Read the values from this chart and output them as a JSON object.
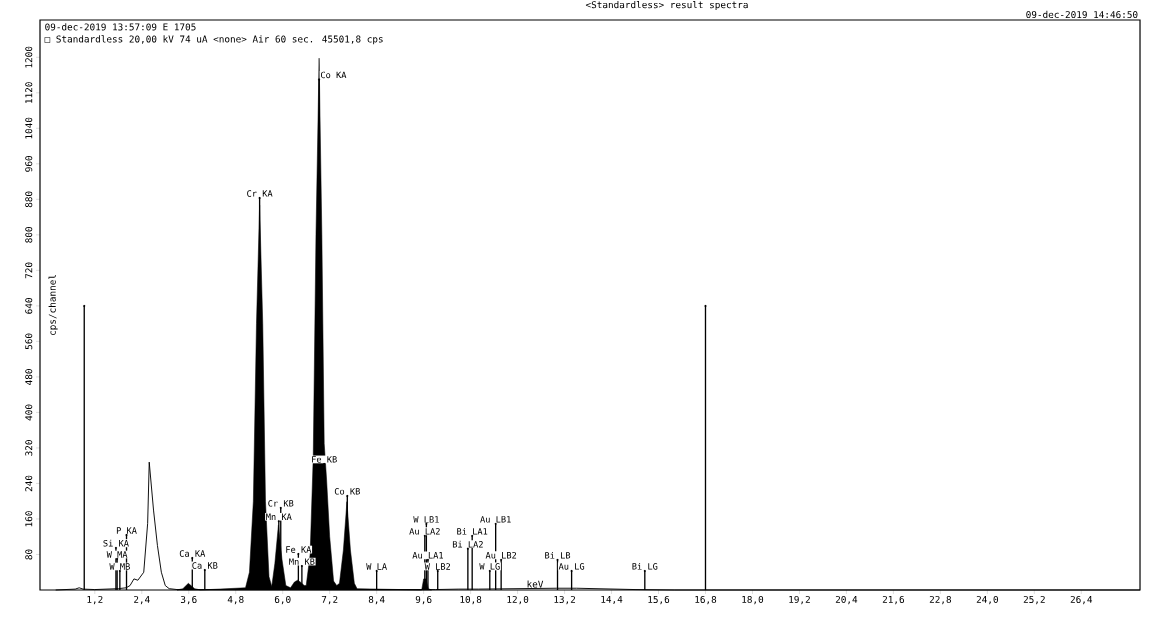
{
  "chart_data": {
    "type": "line",
    "title": "<Standardless> result spectra",
    "xlabel": "keV",
    "ylabel": "cps/channel",
    "annotations": [
      "09-dec-2019 13:57:09 E 1705",
      "□ Standardless 20,00 kV   74 uA <none>        Air  60 sec.   45501,8 cps",
      "09-dec-2019 14:46:50",
      {
        "text": "Co KA",
        "x": 6.93,
        "y": 1150
      },
      {
        "text": "Cr KA",
        "x": 5.41,
        "y": 883
      },
      {
        "text": "Fe KB",
        "x": 7.06,
        "y": 284
      },
      {
        "text": "Co KB",
        "x": 7.65,
        "y": 212
      },
      {
        "text": "Cr KB",
        "x": 5.95,
        "y": 185
      },
      {
        "text": "Mn KA",
        "x": 5.9,
        "y": 155
      },
      {
        "text": "Fe KA",
        "x": 6.4,
        "y": 81
      },
      {
        "text": "Mn KB",
        "x": 6.49,
        "y": 54
      },
      {
        "text": "P KA",
        "x": 2.01,
        "y": 124
      },
      {
        "text": "Si KA",
        "x": 1.74,
        "y": 95
      },
      {
        "text": "W MA",
        "x": 1.77,
        "y": 70
      },
      {
        "text": "W MB",
        "x": 1.84,
        "y": 43
      },
      {
        "text": "Ca KA",
        "x": 3.69,
        "y": 72
      },
      {
        "text": "Ca KB",
        "x": 4.01,
        "y": 45
      },
      {
        "text": "W LA",
        "x": 8.4,
        "y": 43
      },
      {
        "text": "W LB1",
        "x": 9.67,
        "y": 149
      },
      {
        "text": "Au LA2",
        "x": 9.63,
        "y": 122
      },
      {
        "text": "Au LA1",
        "x": 9.71,
        "y": 68
      },
      {
        "text": "W LB2",
        "x": 9.96,
        "y": 43
      },
      {
        "text": "Bi LA1",
        "x": 10.84,
        "y": 122
      },
      {
        "text": "Bi LA2",
        "x": 10.73,
        "y": 93
      },
      {
        "text": "Au LB1",
        "x": 11.44,
        "y": 149
      },
      {
        "text": "W LG",
        "x": 11.29,
        "y": 43
      },
      {
        "text": "Au LB2",
        "x": 11.58,
        "y": 68
      },
      {
        "text": "Bi LB",
        "x": 13.02,
        "y": 68
      },
      {
        "text": "Au LG",
        "x": 13.38,
        "y": 43
      },
      {
        "text": "Bi LG",
        "x": 15.25,
        "y": 43
      }
    ],
    "series": [
      {
        "color": "#000000",
        "x": [
          0.2,
          0.7,
          0.8,
          0.9,
          1.2,
          1.5,
          1.8,
          2.0,
          2.1,
          2.2,
          2.3,
          2.45,
          2.55,
          2.59,
          2.7,
          2.8,
          2.9,
          3.0,
          3.1,
          3.3,
          9.9,
          10.5,
          11.0,
          12.0,
          13.0,
          13.5,
          14.0,
          14.5,
          15.0,
          16.0,
          20.0,
          27.9
        ],
        "values": [
          0,
          2,
          5,
          2,
          1,
          2,
          3,
          5,
          10,
          25,
          22,
          40,
          150,
          288,
          180,
          100,
          40,
          10,
          3,
          1,
          1,
          2,
          2,
          3,
          4,
          4,
          3,
          2,
          1,
          0,
          0,
          0
        ]
      },
      {
        "type": "area",
        "color": "#000000",
        "x": [
          3.3,
          3.45,
          3.59,
          3.75,
          3.9,
          5.05,
          5.15,
          5.25,
          5.33,
          5.41,
          5.49,
          5.56,
          5.65,
          5.72,
          5.8,
          5.89,
          5.98,
          6.08,
          6.2,
          6.3,
          6.38,
          6.45,
          6.55,
          6.6,
          6.7,
          6.78,
          6.85,
          6.93,
          7.0,
          7.06,
          7.12,
          7.2,
          7.3,
          7.38,
          7.45,
          7.55,
          7.64,
          7.73,
          7.83,
          7.9,
          9.55,
          9.6,
          9.66,
          9.72,
          9.8
        ],
        "values": [
          0,
          3,
          15,
          3,
          0,
          5,
          40,
          200,
          600,
          867,
          600,
          200,
          30,
          8,
          60,
          146,
          70,
          10,
          5,
          18,
          22,
          18,
          10,
          10,
          80,
          300,
          800,
          1198,
          800,
          330,
          250,
          120,
          20,
          10,
          15,
          90,
          199,
          90,
          15,
          3,
          0,
          25,
          25,
          3,
          0
        ]
      },
      {
        "type": "lollipop",
        "color": "#000000",
        "x": [
          0.93,
          1.74,
          1.77,
          1.84,
          2.01,
          3.69,
          4.01,
          5.41,
          5.9,
          5.95,
          6.4,
          6.49,
          6.93,
          7.06,
          7.65,
          8.4,
          9.63,
          9.67,
          9.71,
          9.96,
          10.73,
          10.84,
          11.29,
          11.44,
          11.58,
          13.02,
          13.38,
          15.25,
          16.8
        ],
        "values": [
          640,
          95,
          70,
          43,
          124,
          72,
          45,
          883,
          155,
          185,
          81,
          54,
          1150,
          284,
          212,
          43,
          122,
          149,
          68,
          43,
          93,
          122,
          43,
          149,
          68,
          68,
          43,
          43,
          640
        ]
      }
    ],
    "xlim": [
      -0.2,
      27.9
    ],
    "ylim": [
      0,
      1284
    ],
    "xticks": [
      {
        "value": 1.2,
        "label": "1,2"
      },
      {
        "value": 2.4,
        "label": "2,4"
      },
      {
        "value": 3.6,
        "label": "3,6"
      },
      {
        "value": 4.8,
        "label": "4,8"
      },
      {
        "value": 6.0,
        "label": "6,0"
      },
      {
        "value": 7.2,
        "label": "7,2"
      },
      {
        "value": 8.4,
        "label": "8,4"
      },
      {
        "value": 9.6,
        "label": "9,6"
      },
      {
        "value": 10.8,
        "label": "10,8"
      },
      {
        "value": 12.0,
        "label": "12,0"
      },
      {
        "value": 13.2,
        "label": "13,2"
      },
      {
        "value": 14.4,
        "label": "14,4"
      },
      {
        "value": 15.6,
        "label": "15,6"
      },
      {
        "value": 16.8,
        "label": "16,8"
      },
      {
        "value": 18.0,
        "label": "18,0"
      },
      {
        "value": 19.2,
        "label": "19,2"
      },
      {
        "value": 20.4,
        "label": "20,4"
      },
      {
        "value": 21.6,
        "label": "21,6"
      },
      {
        "value": 22.8,
        "label": "22,8"
      },
      {
        "value": 24.0,
        "label": "24,0"
      },
      {
        "value": 25.2,
        "label": "25,2"
      },
      {
        "value": 26.4,
        "label": "26,4"
      }
    ],
    "yticks": [
      80,
      160,
      240,
      320,
      400,
      480,
      560,
      640,
      720,
      800,
      880,
      960,
      1040,
      1120,
      1200
    ],
    "grid": false
  }
}
